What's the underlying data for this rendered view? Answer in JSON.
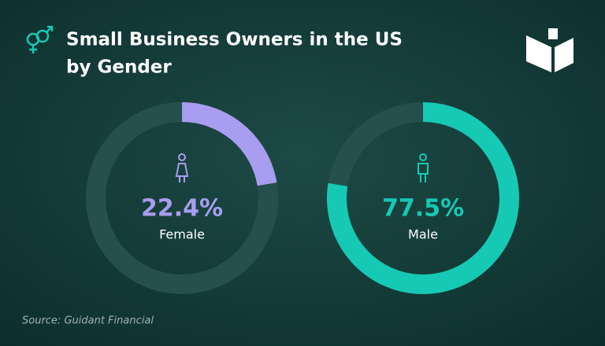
{
  "title_lines": [
    "Small Business Owners in the US",
    "by Gender"
  ],
  "source": "Source: Guidant Financial",
  "chart_data": [
    {
      "type": "donut",
      "categories": [
        "Female"
      ],
      "values": [
        22.4
      ],
      "value_labels": [
        "22.4%"
      ],
      "color": "#a89df0"
    },
    {
      "type": "donut",
      "categories": [
        "Male"
      ],
      "values": [
        77.5
      ],
      "value_labels": [
        "77.5%"
      ],
      "color": "#16c9b4"
    }
  ]
}
